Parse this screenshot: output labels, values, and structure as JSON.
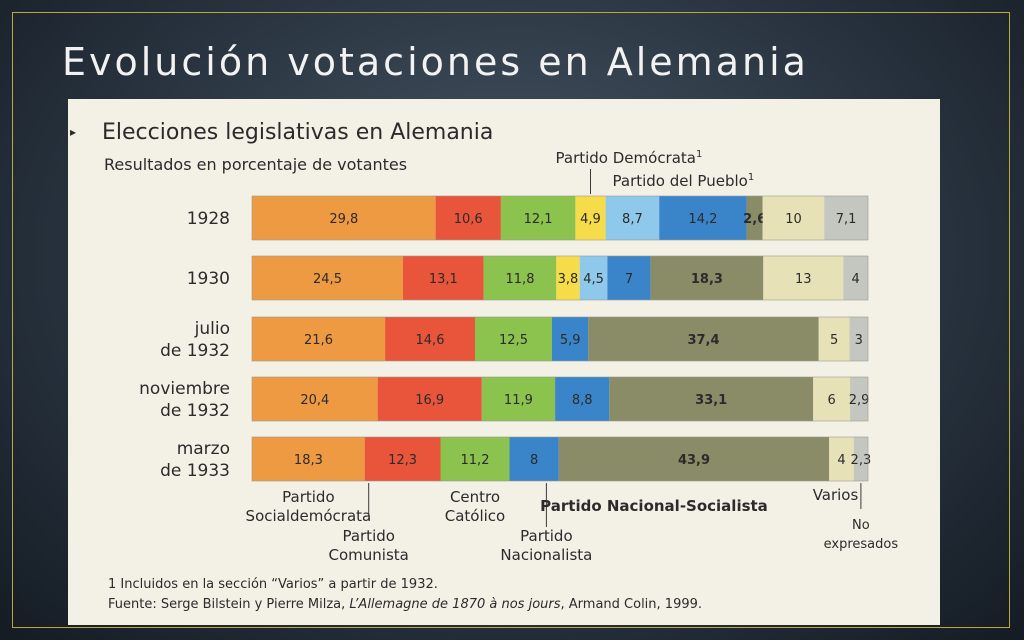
{
  "slide": {
    "title": "Evolución votaciones en Alemania"
  },
  "chart_data": {
    "type": "bar",
    "orientation": "horizontal-stacked-100",
    "title": "Elecciones legislativas en Alemania",
    "subtitle": "Resultados en porcentaje de votantes",
    "categories": [
      "1928",
      "1930",
      "julio de 1932",
      "noviembre de 1932",
      "marzo de 1933"
    ],
    "category_lines": [
      [
        "1928"
      ],
      [
        "1930"
      ],
      [
        "julio",
        "de 1932"
      ],
      [
        "noviembre",
        "de 1932"
      ],
      [
        "marzo",
        "de 1933"
      ]
    ],
    "series": [
      {
        "key": "spd",
        "color": "#ee9a43",
        "values": [
          29.8,
          24.5,
          21.6,
          20.4,
          18.3
        ]
      },
      {
        "key": "kpd",
        "color": "#e8553a",
        "values": [
          10.6,
          13.1,
          14.6,
          16.9,
          12.3
        ]
      },
      {
        "key": "zen",
        "color": "#8cc34e",
        "values": [
          12.1,
          11.8,
          12.5,
          11.9,
          11.2
        ]
      },
      {
        "key": "ddp",
        "color": "#f7dc4a",
        "values": [
          4.9,
          3.8,
          null,
          null,
          null
        ]
      },
      {
        "key": "dvp",
        "color": "#8ec8ea",
        "values": [
          8.7,
          4.5,
          null,
          null,
          null
        ]
      },
      {
        "key": "dnvp",
        "color": "#3a85c9",
        "values": [
          14.2,
          7,
          5.9,
          8.8,
          8
        ]
      },
      {
        "key": "nsdap",
        "color": "#8a8c68",
        "values": [
          2.6,
          18.3,
          37.4,
          33.1,
          43.9
        ]
      },
      {
        "key": "var",
        "color": "#e7e1b8",
        "values": [
          10,
          13,
          5,
          6,
          4
        ]
      },
      {
        "key": "nex",
        "color": "#c3c7c0",
        "values": [
          7.1,
          4,
          3,
          2.9,
          2.3
        ]
      }
    ],
    "value_labels": [
      [
        "29,8",
        "10,6",
        "12,1",
        "4,9",
        "8,7",
        "14,2",
        "2,6",
        "10",
        "7,1"
      ],
      [
        "24,5",
        "13,1",
        "11,8",
        "3,8",
        "4,5",
        "7",
        "18,3",
        "13",
        "4"
      ],
      [
        "21,6",
        "14,6",
        "12,5",
        "",
        "",
        "5,9",
        "37,4",
        "5",
        "3"
      ],
      [
        "20,4",
        "16,9",
        "11,9",
        "",
        "",
        "8,8",
        "33,1",
        "6",
        "2,9"
      ],
      [
        "18,3",
        "12,3",
        "11,2",
        "",
        "",
        "8",
        "43,9",
        "4",
        "2,3"
      ]
    ],
    "bold_series": [
      "nsdap"
    ],
    "annotations": {
      "spd": [
        "Partido",
        "Socialdemócrata"
      ],
      "kpd": [
        "Partido",
        "Comunista"
      ],
      "zen": [
        "Centro",
        "Católico"
      ],
      "dnvp": [
        "Partido",
        "Nacionalista"
      ],
      "nsdap": [
        "Partido Nacional-Socialista"
      ],
      "var": [
        "Varios"
      ],
      "nex": [
        "No",
        "expresados"
      ],
      "ddp": [
        "Partido Demócrata",
        "1"
      ],
      "dvp": [
        "Partido del Pueblo",
        "1"
      ]
    },
    "footnote": "1 Incluidos en la sección “Varios” a partir de 1932.",
    "source_prefix": "Fuente: Serge Bilstein y Pierre Milza, ",
    "source_italic": "L’Allemagne de 1870 à nos jours",
    "source_suffix": ", Armand Colin, 1999."
  }
}
